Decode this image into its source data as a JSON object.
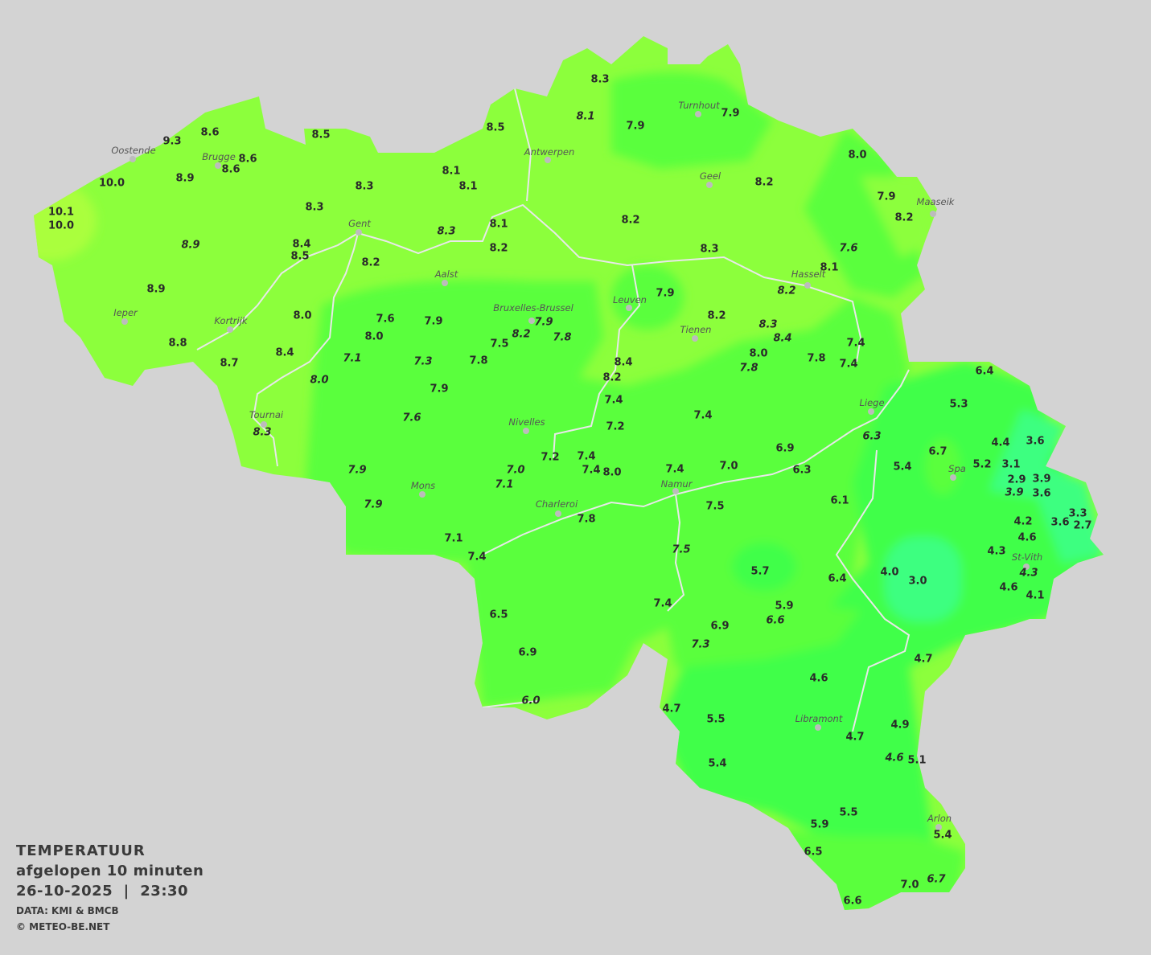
{
  "legend": {
    "title": "TEMPERATUUR",
    "subtitle": "afgelopen 10 minuten",
    "datetime": "26-10-2025  |  23:30",
    "source": "DATA: KMI & BMCB",
    "copyright": "© METEO-BE.NET"
  },
  "colors": {
    "background": "#d3d3d3",
    "zone_8_to_10": "#8cff3c",
    "zone_10_plus": "#aaff3c",
    "zone_6_to_8": "#5aff3c",
    "zone_4_to_6": "#40ff48",
    "zone_below_4": "#3cff80",
    "borders": "#e8e8e8"
  },
  "cities": [
    "Turnhout",
    "Oostende",
    "Brugge",
    "Antwerpen",
    "Geel",
    "Maaseik",
    "Gent",
    "Aalst",
    "Hasselt",
    "Leuven",
    "Bruxelles-Brussel",
    "Ieper",
    "Kortrijk",
    "Tienen",
    "Liege",
    "Tournai",
    "Nivelles",
    "Spa",
    "Mons",
    "Namur",
    "Charleroi",
    "St-Vith",
    "Libramont",
    "Arlon"
  ],
  "stations": [
    {
      "v": "8.3"
    },
    {
      "v": "8.1",
      "italic": true
    },
    {
      "v": "7.9"
    },
    {
      "v": "7.9"
    },
    {
      "v": "8.5"
    },
    {
      "v": "8.6"
    },
    {
      "v": "9.3"
    },
    {
      "v": "8.5"
    },
    {
      "v": "8.6"
    },
    {
      "v": "8.6"
    },
    {
      "v": "10.0"
    },
    {
      "v": "8.9"
    },
    {
      "v": "8.1"
    },
    {
      "v": "8.1"
    },
    {
      "v": "8.3"
    },
    {
      "v": "8.0"
    },
    {
      "v": "8.2"
    },
    {
      "v": "7.9"
    },
    {
      "v": "8.2"
    },
    {
      "v": "10.1"
    },
    {
      "v": "10.0"
    },
    {
      "v": "8.3"
    },
    {
      "v": "8.2"
    },
    {
      "v": "8.1"
    },
    {
      "v": "8.3",
      "italic": true
    },
    {
      "v": "8.9",
      "italic": true
    },
    {
      "v": "8.4"
    },
    {
      "v": "8.5"
    },
    {
      "v": "8.2"
    },
    {
      "v": "8.3"
    },
    {
      "v": "7.6",
      "italic": true
    },
    {
      "v": "8.2"
    },
    {
      "v": "8.1"
    },
    {
      "v": "8.2",
      "italic": true
    },
    {
      "v": "8.9"
    },
    {
      "v": "7.9"
    },
    {
      "v": "7.6"
    },
    {
      "v": "7.9"
    },
    {
      "v": "7.9",
      "italic": true
    },
    {
      "v": "8.2",
      "italic": true
    },
    {
      "v": "7.8",
      "italic": true
    },
    {
      "v": "8.2"
    },
    {
      "v": "8.0"
    },
    {
      "v": "8.0"
    },
    {
      "v": "8.3",
      "italic": true
    },
    {
      "v": "8.4",
      "italic": true
    },
    {
      "v": "7.5"
    },
    {
      "v": "8.8"
    },
    {
      "v": "7.4"
    },
    {
      "v": "7.1",
      "italic": true
    },
    {
      "v": "7.3",
      "italic": true
    },
    {
      "v": "7.8"
    },
    {
      "v": "8.4"
    },
    {
      "v": "8.0"
    },
    {
      "v": "7.8"
    },
    {
      "v": "8.4"
    },
    {
      "v": "7.8",
      "italic": true
    },
    {
      "v": "7.4"
    },
    {
      "v": "8.7"
    },
    {
      "v": "6.4"
    },
    {
      "v": "8.2"
    },
    {
      "v": "8.0",
      "italic": true
    },
    {
      "v": "7.9"
    },
    {
      "v": "7.4"
    },
    {
      "v": "5.3"
    },
    {
      "v": "7.6",
      "italic": true
    },
    {
      "v": "7.4"
    },
    {
      "v": "8.3",
      "italic": true
    },
    {
      "v": "7.2"
    },
    {
      "v": "6.3",
      "italic": true
    },
    {
      "v": "4.4"
    },
    {
      "v": "3.6"
    },
    {
      "v": "6.9"
    },
    {
      "v": "7.2"
    },
    {
      "v": "7.4"
    },
    {
      "v": "6.7"
    },
    {
      "v": "5.4"
    },
    {
      "v": "5.2"
    },
    {
      "v": "3.1"
    },
    {
      "v": "7.9",
      "italic": true
    },
    {
      "v": "7.0",
      "italic": true
    },
    {
      "v": "7.4"
    },
    {
      "v": "8.0"
    },
    {
      "v": "7.4"
    },
    {
      "v": "7.0"
    },
    {
      "v": "6.3"
    },
    {
      "v": "2.9"
    },
    {
      "v": "3.9"
    },
    {
      "v": "7.1",
      "italic": true
    },
    {
      "v": "3.9",
      "italic": true
    },
    {
      "v": "3.6"
    },
    {
      "v": "7.9",
      "italic": true
    },
    {
      "v": "7.5"
    },
    {
      "v": "6.1"
    },
    {
      "v": "3.3"
    },
    {
      "v": "7.8"
    },
    {
      "v": "4.2"
    },
    {
      "v": "3.6"
    },
    {
      "v": "2.7"
    },
    {
      "v": "4.6"
    },
    {
      "v": "7.1"
    },
    {
      "v": "7.5",
      "italic": true
    },
    {
      "v": "4.3"
    },
    {
      "v": "7.4"
    },
    {
      "v": "5.7"
    },
    {
      "v": "4.0"
    },
    {
      "v": "3.0"
    },
    {
      "v": "6.4"
    },
    {
      "v": "4.3",
      "italic": true
    },
    {
      "v": "4.6"
    },
    {
      "v": "4.1"
    },
    {
      "v": "7.4"
    },
    {
      "v": "5.9"
    },
    {
      "v": "6.6",
      "italic": true
    },
    {
      "v": "6.5"
    },
    {
      "v": "6.9"
    },
    {
      "v": "7.3",
      "italic": true
    },
    {
      "v": "6.9"
    },
    {
      "v": "4.7"
    },
    {
      "v": "4.6"
    },
    {
      "v": "6.0",
      "italic": true
    },
    {
      "v": "4.7"
    },
    {
      "v": "5.5"
    },
    {
      "v": "4.9"
    },
    {
      "v": "4.7"
    },
    {
      "v": "4.6",
      "italic": true
    },
    {
      "v": "5.1"
    },
    {
      "v": "5.4"
    },
    {
      "v": "5.5"
    },
    {
      "v": "5.9"
    },
    {
      "v": "5.4"
    },
    {
      "v": "6.5"
    },
    {
      "v": "7.0"
    },
    {
      "v": "6.7",
      "italic": true
    },
    {
      "v": "6.6"
    }
  ]
}
